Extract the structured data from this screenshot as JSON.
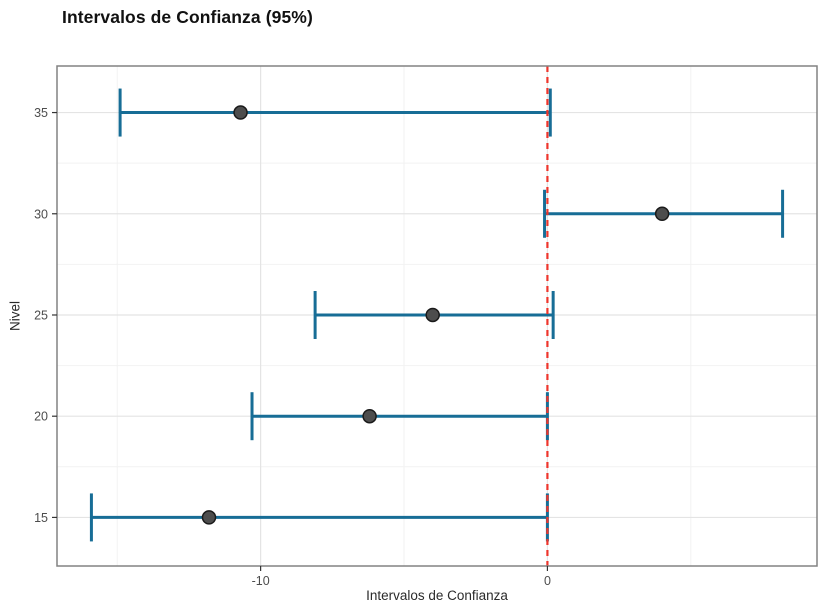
{
  "page": {
    "background": "#ffffff"
  },
  "chart_data": {
    "type": "errorbar",
    "orientation": "horizontal",
    "title": "Intervalos de Confianza (95%)",
    "xlabel": "Intervalos de Confianza",
    "ylabel": "Nivel",
    "xlim": [
      -17.1,
      9.4
    ],
    "ylim": [
      12.6,
      37.3
    ],
    "x_ticks": {
      "values": [
        -10,
        0
      ],
      "labels": [
        "-10",
        "0"
      ]
    },
    "y_ticks": {
      "values": [
        35,
        30,
        25,
        20,
        15
      ],
      "labels": [
        "35",
        "30",
        "25",
        "20",
        "15"
      ]
    },
    "x_minor_grid": [
      -15,
      -5,
      5
    ],
    "y_minor_grid": [
      17.5,
      22.5,
      27.5,
      32.5
    ],
    "reference_line": {
      "x": 0,
      "linetype": "dashed",
      "color": "#ee352b"
    },
    "points": [
      {
        "nivel": 35,
        "estimate": -10.7,
        "lower": -14.9,
        "upper": 0.1
      },
      {
        "nivel": 30,
        "estimate": 4.0,
        "lower": -0.1,
        "upper": 8.2
      },
      {
        "nivel": 25,
        "estimate": -4.0,
        "lower": -8.1,
        "upper": 0.2
      },
      {
        "nivel": 20,
        "estimate": -6.2,
        "lower": -10.3,
        "upper": 0.0
      },
      {
        "nivel": 15,
        "estimate": -11.8,
        "lower": -15.9,
        "upper": 0.0
      }
    ],
    "grid": true,
    "legend": null,
    "colors": {
      "bar": "#176d96",
      "point_fill": "#4d4d4d",
      "point_stroke": "#1a1a1a",
      "grid_major": "#e4e4e4",
      "grid_minor": "#f2f2f2",
      "panel_border": "#828282",
      "tick_mark": "#333333",
      "tick_text": "#4d4d4d",
      "title_text": "#111111"
    }
  }
}
